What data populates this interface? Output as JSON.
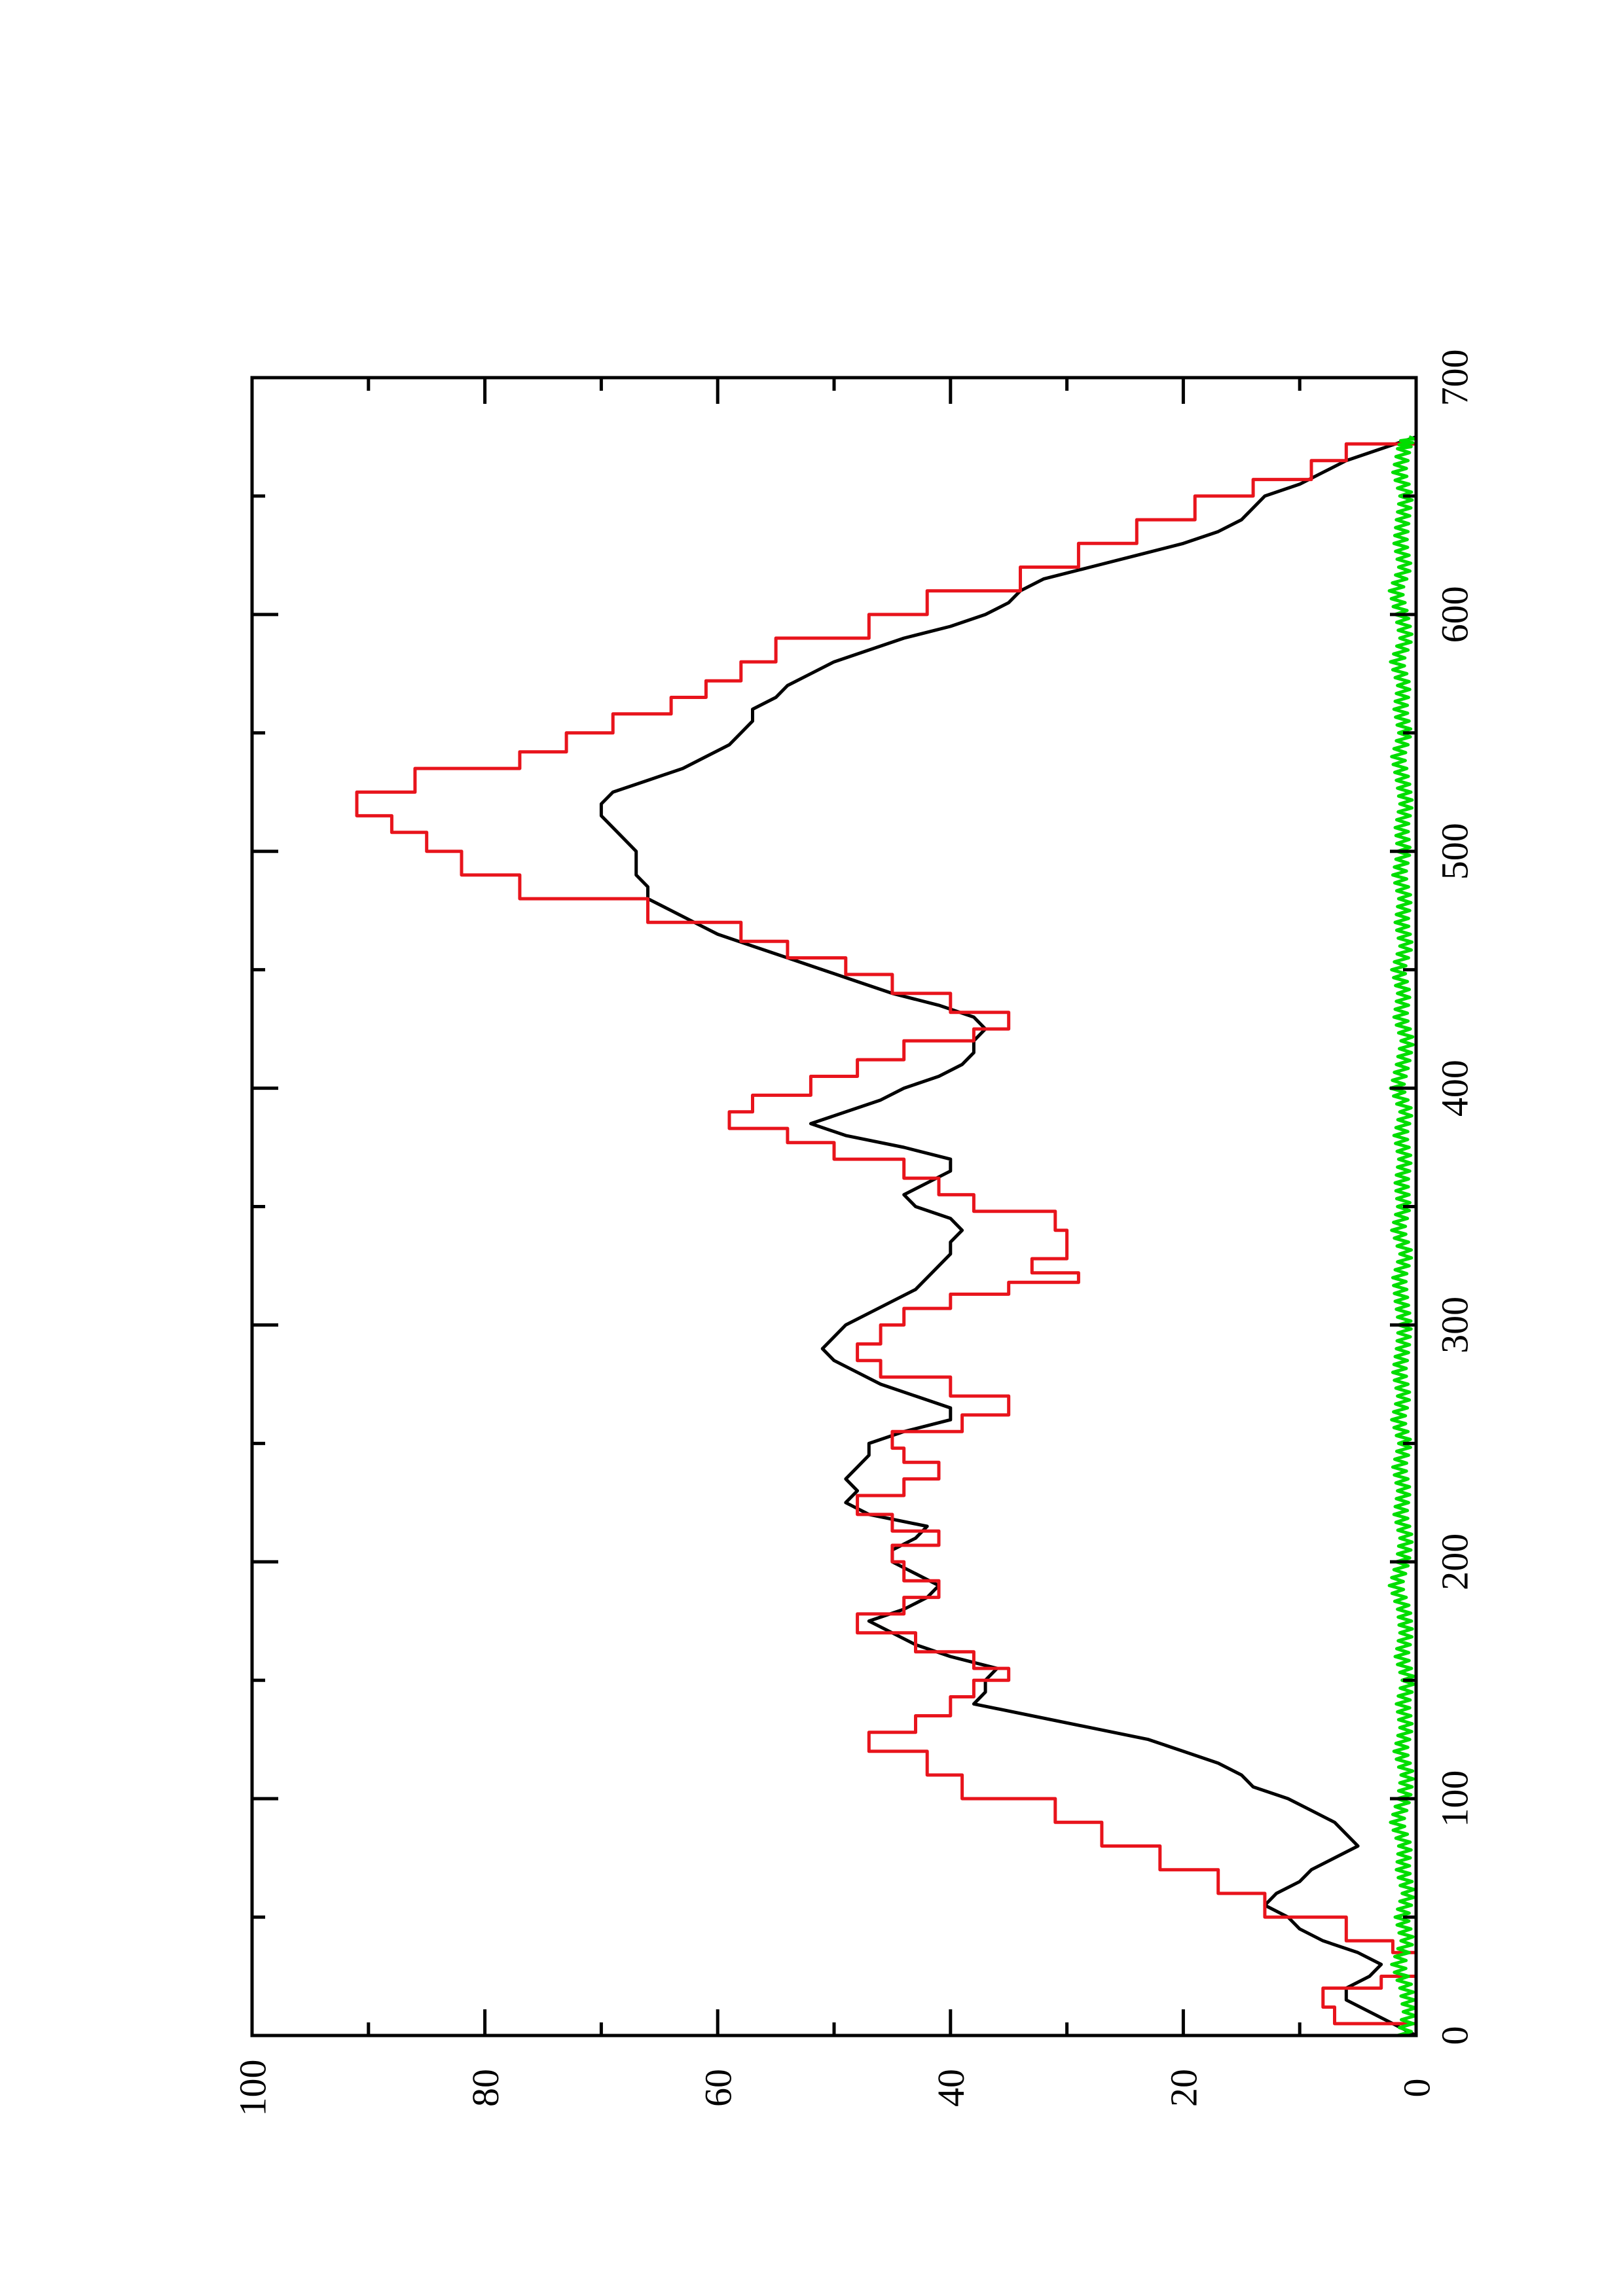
{
  "chart_data": {
    "type": "line",
    "orientation": "rotated-90-counterclockwise",
    "title": "",
    "xlabel": "",
    "ylabel": "",
    "xlim": [
      0,
      700
    ],
    "ylim": [
      0,
      100
    ],
    "x_ticks": [
      0,
      100,
      200,
      300,
      400,
      500,
      600,
      700
    ],
    "y_ticks": [
      0,
      20,
      40,
      60,
      80,
      100
    ],
    "x_ticks_labels": [
      "0",
      "100",
      "200",
      "300",
      "400",
      "500",
      "600",
      "700"
    ],
    "y_ticks_labels": [
      "0",
      "20",
      "40",
      "60",
      "80",
      "100"
    ],
    "x_minor_ticks": [
      50,
      150,
      250,
      350,
      450,
      550,
      650
    ],
    "y_minor_ticks": [
      10,
      30,
      50,
      70,
      90
    ],
    "grid": false,
    "legend": "none",
    "series": [
      {
        "color": "#000000",
        "style": "smooth",
        "points": [
          [
            0,
            0
          ],
          [
            5,
            2
          ],
          [
            10,
            4
          ],
          [
            15,
            6
          ],
          [
            20,
            6
          ],
          [
            25,
            4
          ],
          [
            30,
            3
          ],
          [
            35,
            5
          ],
          [
            40,
            8
          ],
          [
            45,
            10
          ],
          [
            50,
            11
          ],
          [
            55,
            13
          ],
          [
            60,
            12
          ],
          [
            65,
            10
          ],
          [
            70,
            9
          ],
          [
            75,
            7
          ],
          [
            80,
            5
          ],
          [
            85,
            6
          ],
          [
            90,
            7
          ],
          [
            95,
            9
          ],
          [
            100,
            11
          ],
          [
            105,
            14
          ],
          [
            110,
            15
          ],
          [
            115,
            17
          ],
          [
            120,
            20
          ],
          [
            125,
            23
          ],
          [
            130,
            28
          ],
          [
            135,
            33
          ],
          [
            140,
            38
          ],
          [
            145,
            37
          ],
          [
            150,
            37
          ],
          [
            155,
            36
          ],
          [
            160,
            40
          ],
          [
            165,
            43
          ],
          [
            170,
            45
          ],
          [
            175,
            47
          ],
          [
            180,
            44
          ],
          [
            185,
            42
          ],
          [
            190,
            41
          ],
          [
            195,
            43
          ],
          [
            200,
            45
          ],
          [
            205,
            45
          ],
          [
            210,
            43
          ],
          [
            215,
            42
          ],
          [
            220,
            47
          ],
          [
            225,
            49
          ],
          [
            230,
            48
          ],
          [
            235,
            49
          ],
          [
            240,
            48
          ],
          [
            245,
            47
          ],
          [
            250,
            47
          ],
          [
            255,
            44
          ],
          [
            260,
            40
          ],
          [
            265,
            40
          ],
          [
            270,
            43
          ],
          [
            275,
            46
          ],
          [
            280,
            48
          ],
          [
            285,
            50
          ],
          [
            290,
            51
          ],
          [
            295,
            50
          ],
          [
            300,
            49
          ],
          [
            305,
            47
          ],
          [
            310,
            45
          ],
          [
            315,
            43
          ],
          [
            320,
            42
          ],
          [
            325,
            41
          ],
          [
            330,
            40
          ],
          [
            335,
            40
          ],
          [
            340,
            39
          ],
          [
            345,
            40
          ],
          [
            350,
            43
          ],
          [
            355,
            44
          ],
          [
            360,
            42
          ],
          [
            365,
            40
          ],
          [
            370,
            40
          ],
          [
            375,
            44
          ],
          [
            380,
            49
          ],
          [
            385,
            52
          ],
          [
            390,
            49
          ],
          [
            395,
            46
          ],
          [
            400,
            44
          ],
          [
            405,
            41
          ],
          [
            410,
            39
          ],
          [
            415,
            38
          ],
          [
            420,
            38
          ],
          [
            425,
            37
          ],
          [
            430,
            38
          ],
          [
            435,
            41
          ],
          [
            440,
            45
          ],
          [
            445,
            48
          ],
          [
            450,
            51
          ],
          [
            455,
            54
          ],
          [
            460,
            57
          ],
          [
            465,
            60
          ],
          [
            470,
            62
          ],
          [
            475,
            64
          ],
          [
            480,
            66
          ],
          [
            485,
            66
          ],
          [
            490,
            67
          ],
          [
            495,
            67
          ],
          [
            500,
            67
          ],
          [
            505,
            68
          ],
          [
            510,
            69
          ],
          [
            515,
            70
          ],
          [
            520,
            70
          ],
          [
            525,
            69
          ],
          [
            530,
            66
          ],
          [
            535,
            63
          ],
          [
            540,
            61
          ],
          [
            545,
            59
          ],
          [
            550,
            58
          ],
          [
            555,
            57
          ],
          [
            560,
            57
          ],
          [
            565,
            55
          ],
          [
            570,
            54
          ],
          [
            575,
            52
          ],
          [
            580,
            50
          ],
          [
            585,
            47
          ],
          [
            590,
            44
          ],
          [
            595,
            40
          ],
          [
            600,
            37
          ],
          [
            605,
            35
          ],
          [
            610,
            34
          ],
          [
            615,
            32
          ],
          [
            620,
            28
          ],
          [
            625,
            24
          ],
          [
            630,
            20
          ],
          [
            635,
            17
          ],
          [
            640,
            15
          ],
          [
            645,
            14
          ],
          [
            650,
            13
          ],
          [
            655,
            10
          ],
          [
            660,
            8
          ],
          [
            665,
            6
          ],
          [
            670,
            3
          ],
          [
            675,
            0
          ]
        ]
      },
      {
        "color": "#e8141c",
        "style": "step",
        "points": [
          [
            0,
            0
          ],
          [
            5,
            7
          ],
          [
            12,
            8
          ],
          [
            20,
            3
          ],
          [
            25,
            0
          ],
          [
            35,
            2
          ],
          [
            40,
            6
          ],
          [
            50,
            13
          ],
          [
            60,
            17
          ],
          [
            70,
            22
          ],
          [
            80,
            27
          ],
          [
            90,
            31
          ],
          [
            100,
            39
          ],
          [
            110,
            42
          ],
          [
            120,
            47
          ],
          [
            128,
            43
          ],
          [
            135,
            40
          ],
          [
            143,
            38
          ],
          [
            150,
            35
          ],
          [
            155,
            38
          ],
          [
            162,
            43
          ],
          [
            170,
            48
          ],
          [
            178,
            44
          ],
          [
            185,
            41
          ],
          [
            192,
            44
          ],
          [
            200,
            45
          ],
          [
            207,
            41
          ],
          [
            213,
            45
          ],
          [
            220,
            48
          ],
          [
            228,
            44
          ],
          [
            235,
            41
          ],
          [
            242,
            44
          ],
          [
            248,
            45
          ],
          [
            255,
            39
          ],
          [
            262,
            35
          ],
          [
            270,
            40
          ],
          [
            278,
            46
          ],
          [
            285,
            48
          ],
          [
            292,
            46
          ],
          [
            300,
            44
          ],
          [
            307,
            40
          ],
          [
            313,
            35
          ],
          [
            318,
            29
          ],
          [
            322,
            33
          ],
          [
            328,
            30
          ],
          [
            340,
            31
          ],
          [
            348,
            38
          ],
          [
            355,
            41
          ],
          [
            362,
            44
          ],
          [
            370,
            50
          ],
          [
            377,
            54
          ],
          [
            383,
            59
          ],
          [
            390,
            57
          ],
          [
            397,
            52
          ],
          [
            405,
            48
          ],
          [
            412,
            44
          ],
          [
            420,
            38
          ],
          [
            425,
            35
          ],
          [
            432,
            40
          ],
          [
            440,
            45
          ],
          [
            448,
            49
          ],
          [
            455,
            54
          ],
          [
            462,
            58
          ],
          [
            470,
            66
          ],
          [
            480,
            77
          ],
          [
            490,
            82
          ],
          [
            500,
            85
          ],
          [
            508,
            88
          ],
          [
            515,
            91
          ],
          [
            525,
            86
          ],
          [
            535,
            77
          ],
          [
            542,
            73
          ],
          [
            550,
            69
          ],
          [
            558,
            64
          ],
          [
            565,
            61
          ],
          [
            572,
            58
          ],
          [
            580,
            55
          ],
          [
            590,
            47
          ],
          [
            600,
            42
          ],
          [
            610,
            34
          ],
          [
            620,
            29
          ],
          [
            630,
            24
          ],
          [
            640,
            19
          ],
          [
            650,
            14
          ],
          [
            657,
            9
          ],
          [
            665,
            6
          ],
          [
            672,
            0
          ]
        ]
      },
      {
        "color": "#00dd00",
        "style": "noise",
        "points": [
          [
            0,
            1
          ],
          [
            10,
            0.5
          ],
          [
            20,
            0.8
          ],
          [
            30,
            1.5
          ],
          [
            40,
            0.7
          ],
          [
            50,
            1.2
          ],
          [
            60,
            0.6
          ],
          [
            70,
            1.1
          ],
          [
            80,
            0.9
          ],
          [
            90,
            1.6
          ],
          [
            100,
            1.0
          ],
          [
            110,
            0.7
          ],
          [
            120,
            1.3
          ],
          [
            130,
            0.8
          ],
          [
            140,
            1.1
          ],
          [
            150,
            0.6
          ],
          [
            160,
            1.2
          ],
          [
            170,
            0.8
          ],
          [
            180,
            1.0
          ],
          [
            190,
            1.7
          ],
          [
            200,
            1.1
          ],
          [
            210,
            0.8
          ],
          [
            220,
            1.3
          ],
          [
            230,
            1.0
          ],
          [
            240,
            1.4
          ],
          [
            250,
            0.9
          ],
          [
            260,
            1.5
          ],
          [
            270,
            1.0
          ],
          [
            280,
            1.4
          ],
          [
            290,
            1.1
          ],
          [
            300,
            0.9
          ],
          [
            310,
            1.2
          ],
          [
            320,
            1.4
          ],
          [
            330,
            0.8
          ],
          [
            340,
            1.5
          ],
          [
            350,
            1.0
          ],
          [
            360,
            1.2
          ],
          [
            370,
            0.9
          ],
          [
            380,
            1.3
          ],
          [
            390,
            0.8
          ],
          [
            400,
            1.6
          ],
          [
            410,
            1.1
          ],
          [
            420,
            0.7
          ],
          [
            430,
            1.3
          ],
          [
            440,
            1.0
          ],
          [
            450,
            1.5
          ],
          [
            460,
            0.8
          ],
          [
            470,
            1.2
          ],
          [
            480,
            0.9
          ],
          [
            490,
            1.4
          ],
          [
            500,
            1.0
          ],
          [
            510,
            1.2
          ],
          [
            520,
            0.8
          ],
          [
            530,
            1.1
          ],
          [
            540,
            1.5
          ],
          [
            550,
            0.9
          ],
          [
            560,
            1.3
          ],
          [
            570,
            1.0
          ],
          [
            580,
            1.6
          ],
          [
            590,
            0.8
          ],
          [
            600,
            1.2
          ],
          [
            610,
            1.7
          ],
          [
            620,
            0.9
          ],
          [
            630,
            1.3
          ],
          [
            640,
            1.1
          ],
          [
            650,
            0.8
          ],
          [
            660,
            1.4
          ],
          [
            670,
            1.0
          ],
          [
            675,
            0.6
          ]
        ]
      }
    ]
  }
}
